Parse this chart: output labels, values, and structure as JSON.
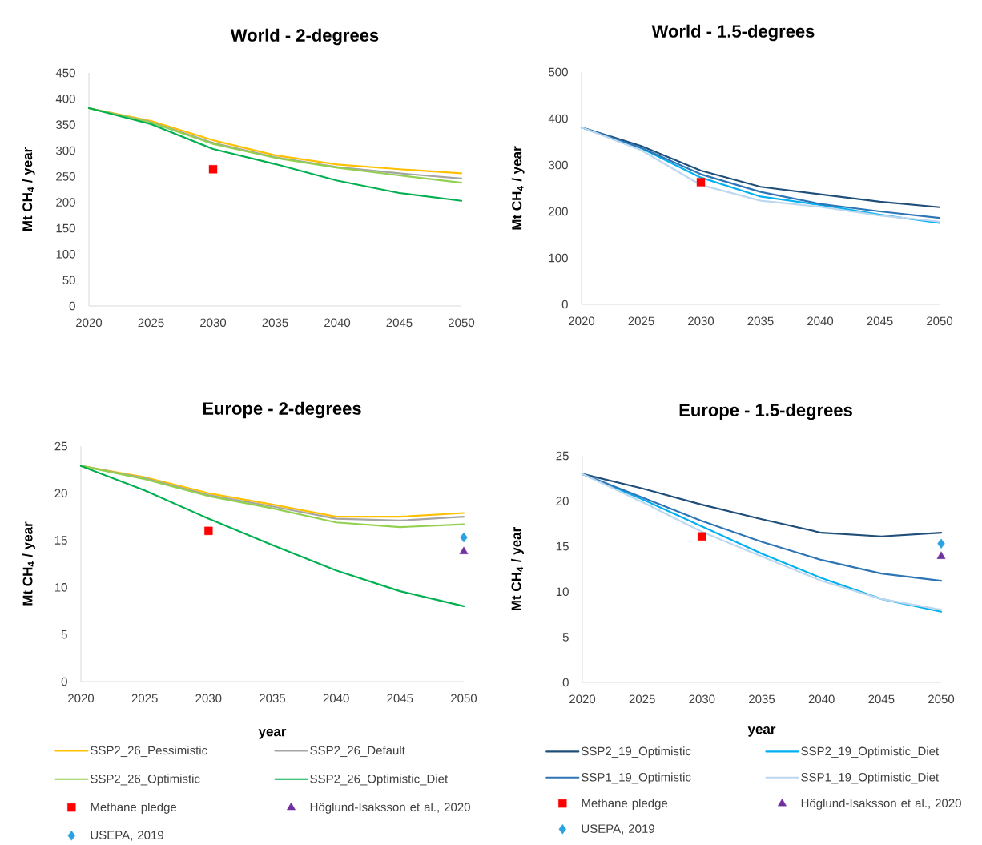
{
  "chart_data": [
    {
      "type": "line",
      "title": "World - 2-degrees",
      "ylabel": "Mt CH$_{4}$ / year",
      "x": [
        2020,
        2025,
        2030,
        2035,
        2040,
        2045,
        2050
      ],
      "xlim": [
        2020,
        2050
      ],
      "xticks": [
        2020,
        2025,
        2030,
        2035,
        2040,
        2045,
        2050
      ],
      "ylim": [
        0,
        450
      ],
      "yticks": [
        0,
        50,
        100,
        150,
        200,
        250,
        300,
        350,
        400,
        450
      ],
      "series": [
        {
          "color": "#ffc000",
          "values": [
            382,
            357,
            320,
            291,
            273,
            264,
            256
          ]
        },
        {
          "color": "#a5a5a5",
          "values": [
            382,
            355,
            315,
            287,
            268,
            256,
            246
          ]
        },
        {
          "color": "#92d050",
          "values": [
            382,
            354,
            313,
            286,
            267,
            252,
            238
          ]
        },
        {
          "color": "#00b050",
          "values": [
            382,
            351,
            303,
            274,
            242,
            218,
            203
          ]
        },
        {
          "type": "scatter",
          "marker": "square",
          "color": "#ff0000",
          "values": [
            null,
            null,
            264,
            null,
            null,
            null,
            null
          ]
        }
      ]
    },
    {
      "type": "line",
      "title": "World - 1.5-degrees",
      "ylabel": "Mt CH$_{4}$ / year",
      "x": [
        2020,
        2025,
        2030,
        2035,
        2040,
        2045,
        2050
      ],
      "xlim": [
        2020,
        2050
      ],
      "xticks": [
        2020,
        2025,
        2030,
        2035,
        2040,
        2045,
        2050
      ],
      "ylim": [
        0,
        500
      ],
      "yticks": [
        0,
        100,
        200,
        300,
        400,
        500
      ],
      "series": [
        {
          "color": "#1f4e79",
          "values": [
            381,
            341,
            288,
            253,
            237,
            221,
            209
          ]
        },
        {
          "color": "#00b0f0",
          "values": [
            381,
            336,
            273,
            232,
            214,
            193,
            175
          ]
        },
        {
          "color": "#2e75b6",
          "values": [
            381,
            337,
            280,
            242,
            216,
            200,
            186
          ]
        },
        {
          "color": "#bdd7ee",
          "values": [
            381,
            332,
            257,
            223,
            210,
            191,
            178
          ]
        },
        {
          "type": "scatter",
          "marker": "square",
          "color": "#ff0000",
          "values": [
            null,
            null,
            263,
            null,
            null,
            null,
            null
          ]
        }
      ]
    },
    {
      "type": "line",
      "title": "Europe - 2-degrees",
      "xlabel": "year",
      "ylabel": "Mt CH$_{4}$ / year",
      "x": [
        2020,
        2025,
        2030,
        2035,
        2040,
        2045,
        2050
      ],
      "xlim": [
        2020,
        2050
      ],
      "xticks": [
        2020,
        2025,
        2030,
        2035,
        2040,
        2045,
        2050
      ],
      "ylim": [
        0,
        25
      ],
      "yticks": [
        0,
        5,
        10,
        15,
        20,
        25
      ],
      "legend": "bottom",
      "series": [
        {
          "name": "SSP2_26_Pessimistic",
          "color": "#ffc000",
          "values": [
            22.9,
            21.7,
            20.0,
            18.8,
            17.5,
            17.5,
            17.9
          ]
        },
        {
          "name": "SSP2_26_Default",
          "color": "#a5a5a5",
          "values": [
            22.9,
            21.6,
            19.8,
            18.6,
            17.3,
            17.1,
            17.5
          ]
        },
        {
          "name": "SSP2_26_Optimistic",
          "color": "#92d050",
          "values": [
            22.9,
            21.5,
            19.7,
            18.4,
            16.9,
            16.4,
            16.7
          ]
        },
        {
          "name": "SSP2_26_Optimistic_Diet",
          "color": "#00b050",
          "values": [
            22.9,
            20.3,
            17.3,
            14.5,
            11.8,
            9.6,
            8.0
          ]
        },
        {
          "name": "Methane pledge",
          "type": "scatter",
          "marker": "square",
          "color": "#ff0000",
          "values": [
            null,
            null,
            16.0,
            null,
            null,
            null,
            null
          ]
        },
        {
          "name": "Höglund-Isaksson et al., 2020",
          "type": "scatter",
          "marker": "triangle",
          "color": "#7030a0",
          "values": [
            null,
            null,
            null,
            null,
            null,
            null,
            13.8
          ]
        },
        {
          "name": "USEPA, 2019",
          "type": "scatter",
          "marker": "diamond",
          "color": "#2aa3e0",
          "values": [
            null,
            null,
            null,
            null,
            null,
            null,
            15.3
          ]
        }
      ]
    },
    {
      "type": "line",
      "title": "Europe - 1.5-degrees",
      "xlabel": "year",
      "ylabel": "Mt CH$_{4}$ / year",
      "x": [
        2020,
        2025,
        2030,
        2035,
        2040,
        2045,
        2050
      ],
      "xlim": [
        2020,
        2050
      ],
      "xticks": [
        2020,
        2025,
        2030,
        2035,
        2040,
        2045,
        2050
      ],
      "ylim": [
        0,
        25
      ],
      "yticks": [
        0,
        5,
        10,
        15,
        20,
        25
      ],
      "legend": "bottom",
      "series": [
        {
          "name": "SSP2_19_Optimistic",
          "color": "#1f4e79",
          "values": [
            23.0,
            21.4,
            19.6,
            18.0,
            16.5,
            16.1,
            16.5
          ]
        },
        {
          "name": "SSP2_19_Optimistic_Diet",
          "color": "#00b0f0",
          "values": [
            23.0,
            20.2,
            17.2,
            14.2,
            11.5,
            9.2,
            7.8
          ]
        },
        {
          "name": "SSP1_19_Optimistic",
          "color": "#2e75b6",
          "values": [
            23.0,
            20.4,
            17.8,
            15.5,
            13.5,
            12.0,
            11.2
          ]
        },
        {
          "name": "SSP1_19_Optimistic_Diet",
          "color": "#bdd7ee",
          "values": [
            23.0,
            19.9,
            16.6,
            13.9,
            11.2,
            9.2,
            8.0
          ]
        },
        {
          "name": "Methane pledge",
          "type": "scatter",
          "marker": "square",
          "color": "#ff0000",
          "values": [
            null,
            null,
            16.1,
            null,
            null,
            null,
            null
          ]
        },
        {
          "name": "Höglund-Isaksson et al., 2020",
          "type": "scatter",
          "marker": "triangle",
          "color": "#7030a0",
          "values": [
            null,
            null,
            null,
            null,
            null,
            null,
            13.9
          ]
        },
        {
          "name": "USEPA, 2019",
          "type": "scatter",
          "marker": "diamond",
          "color": "#2aa3e0",
          "values": [
            null,
            null,
            null,
            null,
            null,
            null,
            15.3
          ]
        }
      ]
    }
  ]
}
